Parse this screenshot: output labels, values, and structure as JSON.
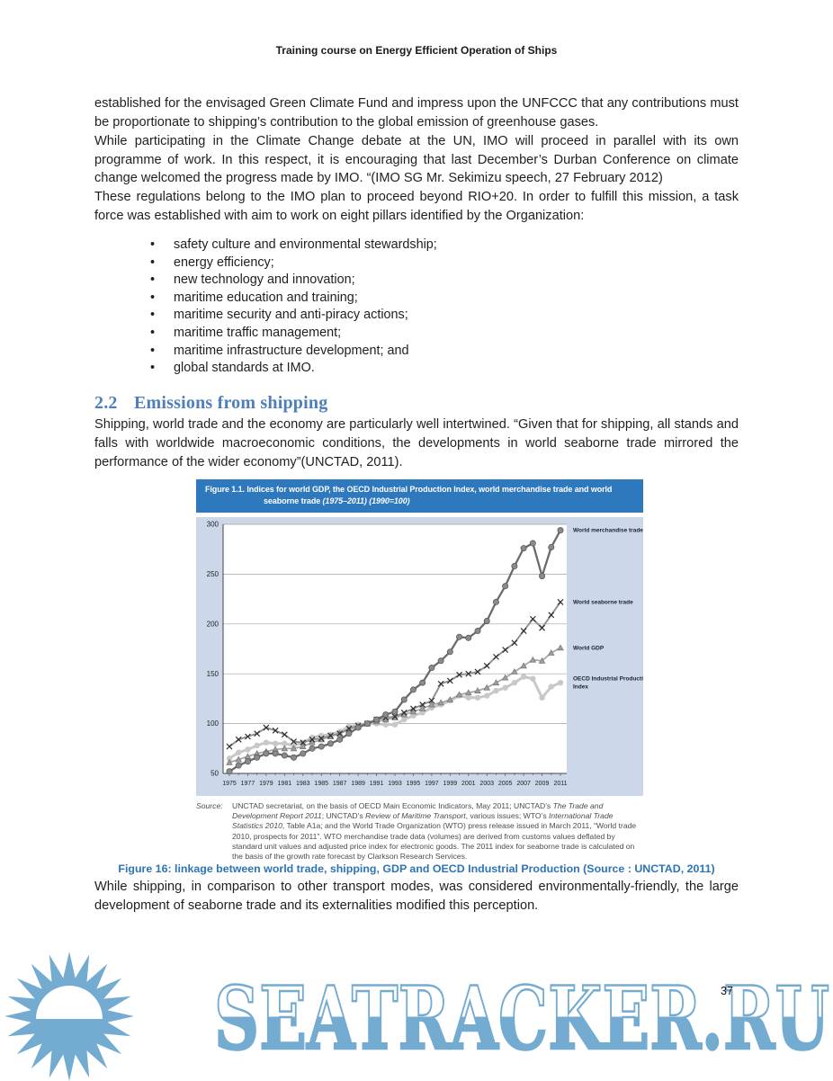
{
  "page": {
    "header": "Training course on Energy Efficient Operation of Ships",
    "page_number": "37"
  },
  "content": {
    "para1": "established for the envisaged Green Climate Fund and impress upon the UNFCCC that any contributions must be proportionate to shipping’s contribution to the global emission of greenhouse gases.",
    "para2": "While participating in the Climate Change debate at the UN, IMO will proceed in parallel with its own programme of work.  In this respect, it is encouraging that last December’s Durban Conference on climate change welcomed the progress made by IMO. “(IMO SG Mr. Sekimizu speech, 27 February 2012)",
    "para3": "These regulations belong to the IMO plan to proceed beyond RIO+20. In order to fulfill this mission, a task force was established with aim to work on eight pillars identified by the Organization:",
    "bullets": [
      "safety culture and environmental stewardship;",
      "energy efficiency;",
      "new technology and innovation;",
      "maritime education and training;",
      "maritime security and anti-piracy actions;",
      "maritime traffic management;",
      "maritime infrastructure development; and",
      "global standards at IMO."
    ],
    "section_heading": {
      "number": "2.2",
      "title": "Emissions from shipping"
    },
    "para4": "Shipping, world trade and the economy are particularly well intertwined.  “Given that for shipping, all stands and falls with worldwide macroeconomic conditions, the developments in world seaborne trade mirrored the performance of the wider economy”(UNCTAD, 2011).",
    "figure_caption": "Figure 16: linkage between world trade, shipping, GDP and OECD Industrial Production  (Source : UNCTAD, 2011)",
    "para5": "While shipping, in comparison to other transport modes, was considered environmentally-friendly, the large development of seaborne trade and its externalities modified this perception."
  },
  "figure": {
    "title_line1": "Figure 1.1. Indices for world GDP, the OECD Industrial Production Index, world merchandise trade and world",
    "title_line2_text": "seaborne trade ",
    "title_line2_italic": "(1975–2011) (1990=100)",
    "title_bar_color": "#2e78bd",
    "panel_color": "#ccd8e9",
    "source_label": "Source:",
    "source_parts": [
      {
        "t": "UNCTAD secretariat, on the basis of OECD Main Economic Indicators, May 2011; UNCTAD’s ",
        "i": false
      },
      {
        "t": "The Trade and Development Report 2011",
        "i": true
      },
      {
        "t": "; UNCTAD’s ",
        "i": false
      },
      {
        "t": "Review of Maritime Transport",
        "i": true
      },
      {
        "t": ", various issues; WTO’s ",
        "i": false
      },
      {
        "t": "International Trade Statistics 2010",
        "i": true
      },
      {
        "t": ", Table A1a; and the World Trade Organization (WTO) press release issued in March 2011, “World trade 2010, prospects for 2011”. WTO merchandise trade data (volumes) are derived from customs values deflated by standard unit values and adjusted price index for electronic goods. The 2011 index for seaborne trade is calculated on the basis of the growth rate forecast by Clarkson Research Services.",
        "i": false
      }
    ]
  },
  "chart_data": {
    "type": "line",
    "title": "Figure 1.1. Indices for world GDP, the OECD Industrial Production Index, world merchandise trade and world seaborne trade (1975–2011) (1990=100)",
    "x": [
      1975,
      1976,
      1977,
      1978,
      1979,
      1980,
      1981,
      1982,
      1983,
      1984,
      1985,
      1986,
      1987,
      1988,
      1989,
      1990,
      1991,
      1992,
      1993,
      1994,
      1995,
      1996,
      1997,
      1998,
      1999,
      2000,
      2001,
      2002,
      2003,
      2004,
      2005,
      2006,
      2007,
      2008,
      2009,
      2010,
      2011
    ],
    "x_tick_step": 2,
    "ylim": [
      50,
      300
    ],
    "yticks": [
      50,
      100,
      150,
      200,
      250,
      300
    ],
    "grid": true,
    "legend_position": "right-of-plot",
    "series": [
      {
        "name": "World merchandise trade",
        "legend_lines": [
          "World merchandise trade"
        ],
        "marker": "circle",
        "marker_size": 3.1,
        "color": "#6b6b6b",
        "marker_color": "#8b8b8b",
        "marker_stroke": "#5a5a5a",
        "line_width": 2.3,
        "values": [
          52,
          58,
          62,
          66,
          70,
          70,
          68,
          66,
          70,
          75,
          77,
          80,
          84,
          90,
          96,
          100,
          104,
          109,
          112,
          124,
          134,
          141,
          156,
          163,
          172,
          187,
          186,
          193,
          203,
          222,
          238,
          258,
          276,
          281,
          248,
          277,
          294
        ]
      },
      {
        "name": "World seaborne trade",
        "legend_lines": [
          "World seaborne trade"
        ],
        "marker": "x",
        "marker_size": 3,
        "color": "#8f8f8f",
        "marker_color": "#2e2e2e",
        "line_width": 1.9,
        "values": [
          77,
          84,
          87,
          90,
          96,
          93,
          89,
          82,
          81,
          84,
          85,
          88,
          90,
          95,
          98,
          100,
          104,
          106,
          107,
          111,
          115,
          119,
          123,
          140,
          143,
          149,
          150,
          152,
          158,
          167,
          174,
          181,
          193,
          205,
          196,
          209,
          222
        ]
      },
      {
        "name": "World GDP",
        "legend_lines": [
          "World GDP"
        ],
        "marker": "triangle",
        "marker_size": 3.2,
        "color": "#a5a5a5",
        "marker_color": "#9e9e9e",
        "marker_stroke": "#757575",
        "line_width": 1.7,
        "values": [
          61,
          64,
          67,
          70,
          72,
          74,
          75,
          75,
          77,
          81,
          84,
          87,
          90,
          94,
          97,
          100,
          102,
          104,
          106,
          109,
          112,
          115,
          119,
          121,
          124,
          129,
          131,
          133,
          136,
          141,
          146,
          152,
          158,
          164,
          163,
          171,
          176
        ]
      },
      {
        "name": "OECD Industrial Production Index",
        "legend_lines": [
          "OECD Industrial Production",
          "Index"
        ],
        "marker": "circle",
        "marker_size": 3.2,
        "color": "#c8c8c8",
        "marker_color": "#c8c8c8",
        "line_width": 3,
        "values": [
          65,
          71,
          74,
          78,
          81,
          80,
          80,
          78,
          81,
          86,
          88,
          89,
          92,
          97,
          99,
          100,
          100,
          99,
          99,
          104,
          108,
          111,
          116,
          119,
          123,
          128,
          126,
          126,
          128,
          133,
          136,
          141,
          147,
          145,
          126,
          137,
          141
        ]
      }
    ]
  },
  "watermark": {
    "text": "SEATRACKER.RU",
    "color": "#74abd0"
  }
}
